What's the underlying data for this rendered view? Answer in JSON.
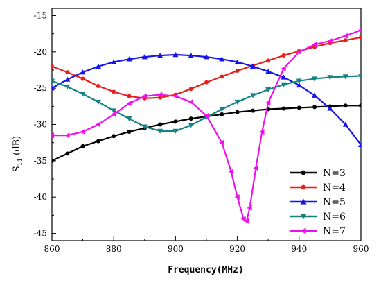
{
  "chart_data": {
    "type": "line",
    "xlabel": "Frequency(MHz)",
    "ylabel_main": "S",
    "ylabel_sub": "11",
    "ylabel_unit": "(dB)",
    "xlim": [
      860,
      960
    ],
    "ylim": [
      -46,
      -14
    ],
    "xticks": [
      860,
      880,
      900,
      920,
      940,
      960
    ],
    "yticks": [
      -45,
      -40,
      -35,
      -30,
      -25,
      -20,
      -15
    ],
    "legend_position": "bottom-right",
    "series": [
      {
        "name": "N=3",
        "color": "#000000",
        "marker": "circle",
        "x": [
          860,
          865,
          870,
          875,
          880,
          885,
          890,
          895,
          900,
          905,
          910,
          915,
          920,
          925,
          930,
          935,
          940,
          945,
          950,
          955,
          960
        ],
        "y": [
          -35.0,
          -34.0,
          -33.0,
          -32.3,
          -31.6,
          -31.0,
          -30.5,
          -30.0,
          -29.6,
          -29.2,
          -28.9,
          -28.6,
          -28.3,
          -28.1,
          -27.9,
          -27.8,
          -27.7,
          -27.6,
          -27.5,
          -27.4,
          -27.4
        ]
      },
      {
        "name": "N=4",
        "color": "#e8201c",
        "marker": "circle",
        "x": [
          860,
          865,
          870,
          875,
          880,
          885,
          890,
          895,
          900,
          905,
          910,
          915,
          920,
          925,
          930,
          935,
          940,
          945,
          950,
          955,
          960
        ],
        "y": [
          -22.0,
          -22.8,
          -23.7,
          -24.7,
          -25.5,
          -26.1,
          -26.4,
          -26.3,
          -25.9,
          -25.1,
          -24.2,
          -23.4,
          -22.6,
          -21.9,
          -21.2,
          -20.5,
          -19.9,
          -19.3,
          -18.8,
          -18.4,
          -18.0
        ]
      },
      {
        "name": "N=5",
        "color": "#1515e8",
        "marker": "triangle-up",
        "x": [
          860,
          865,
          870,
          875,
          880,
          885,
          890,
          895,
          900,
          905,
          910,
          915,
          920,
          925,
          930,
          935,
          940,
          945,
          950,
          955,
          960
        ],
        "y": [
          -25.0,
          -23.8,
          -22.8,
          -22.0,
          -21.4,
          -21.0,
          -20.7,
          -20.5,
          -20.4,
          -20.5,
          -20.7,
          -21.0,
          -21.4,
          -22.0,
          -22.7,
          -23.5,
          -24.6,
          -26.0,
          -27.8,
          -30.0,
          -32.8
        ]
      },
      {
        "name": "N=6",
        "color": "#148282",
        "marker": "triangle-down",
        "x": [
          860,
          865,
          870,
          875,
          880,
          885,
          890,
          895,
          900,
          905,
          910,
          915,
          920,
          925,
          930,
          935,
          940,
          945,
          950,
          955,
          960
        ],
        "y": [
          -24.0,
          -24.8,
          -25.8,
          -26.9,
          -28.1,
          -29.2,
          -30.3,
          -30.9,
          -30.9,
          -30.1,
          -29.0,
          -27.9,
          -26.9,
          -26.0,
          -25.2,
          -24.5,
          -24.0,
          -23.7,
          -23.5,
          -23.4,
          -23.3
        ]
      },
      {
        "name": "N=7",
        "color": "#ee11ee",
        "marker": "triangle-left",
        "x": [
          860,
          865,
          870,
          875,
          880,
          885,
          890,
          895,
          900,
          905,
          910,
          915,
          918,
          920,
          922,
          923,
          924,
          926,
          928,
          930,
          935,
          940,
          945,
          950,
          955,
          960
        ],
        "y": [
          -31.5,
          -31.5,
          -31.0,
          -30.0,
          -28.6,
          -27.1,
          -26.1,
          -25.9,
          -26.1,
          -26.9,
          -28.8,
          -32.5,
          -36.5,
          -40.0,
          -43.0,
          -43.3,
          -41.5,
          -36.0,
          -31.0,
          -27.0,
          -22.3,
          -20.0,
          -19.0,
          -18.5,
          -17.8,
          -17.0
        ]
      }
    ]
  }
}
